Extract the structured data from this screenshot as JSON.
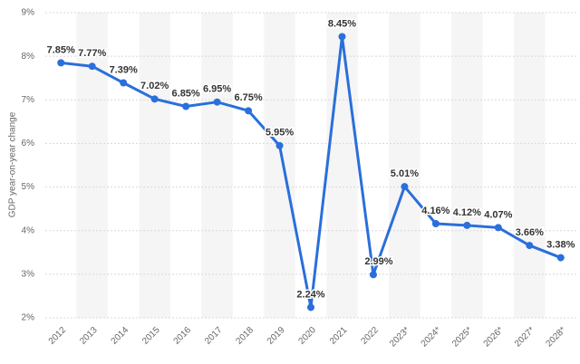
{
  "chart_data": {
    "type": "line",
    "y_label": "GDP year-on-year change",
    "categories": [
      "2012",
      "2013",
      "2014",
      "2015",
      "2016",
      "2017",
      "2018",
      "2019",
      "2020",
      "2021",
      "2022",
      "2023*",
      "2024*",
      "2025*",
      "2026*",
      "2027*",
      "2028*"
    ],
    "series": [
      {
        "name": "GDP year-on-year change",
        "color": "#2a6fdb",
        "values": [
          7.85,
          7.77,
          7.39,
          7.02,
          6.85,
          6.95,
          6.75,
          5.95,
          2.24,
          8.45,
          2.99,
          5.01,
          4.16,
          4.12,
          4.07,
          3.66,
          3.38
        ],
        "value_labels": [
          "7.85%",
          "7.77%",
          "7.39%",
          "7.02%",
          "6.85%",
          "6.95%",
          "6.75%",
          "5.95%",
          "2.24%",
          "8.45%",
          "2.99%",
          "5.01%",
          "4.16%",
          "4.12%",
          "4.07%",
          "3.66%",
          "3.38%"
        ]
      }
    ],
    "ylim": [
      2,
      9
    ],
    "yticks": [
      {
        "value": 2,
        "label": "2%"
      },
      {
        "value": 3,
        "label": "3%"
      },
      {
        "value": 4,
        "label": "4%"
      },
      {
        "value": 5,
        "label": "5%"
      },
      {
        "value": 6,
        "label": "6%"
      },
      {
        "value": 7,
        "label": "7%"
      },
      {
        "value": 8,
        "label": "8%"
      },
      {
        "value": 9,
        "label": "9%"
      }
    ],
    "grid": true
  }
}
